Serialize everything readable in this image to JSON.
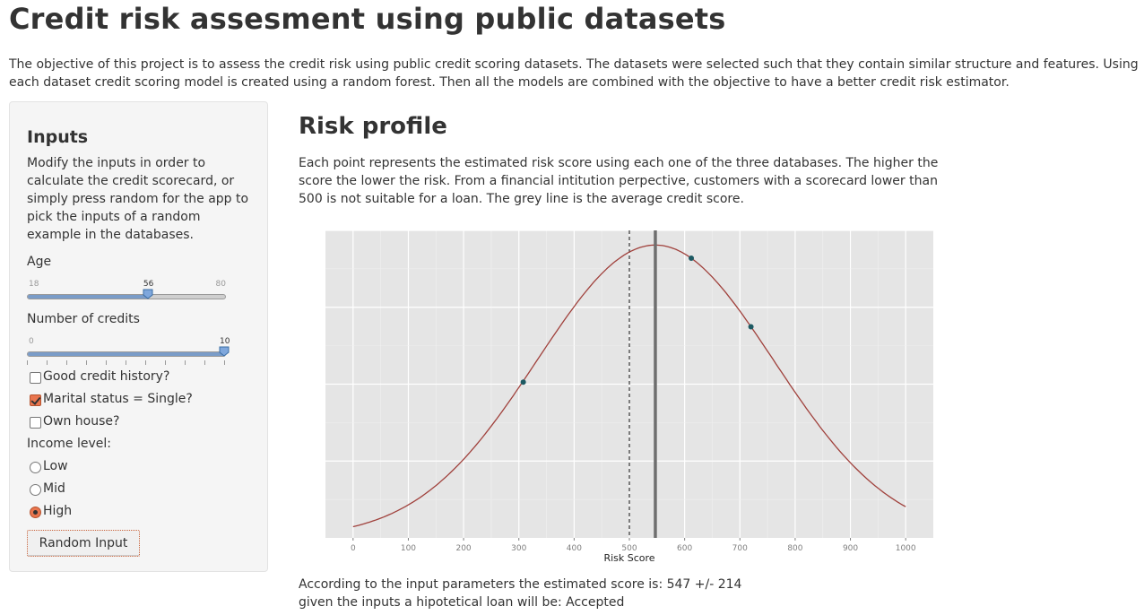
{
  "page": {
    "title": "Credit risk assesment using public datasets",
    "intro": "The objective of this project is to assess the credit risk using public credit scoring datasets. The datasets were selected such that they contain similar structure and features. Using each dataset credit scoring model is created using a random forest. Then all the models are combined with the objective to have a better credit risk estimator."
  },
  "sidebar": {
    "title": "Inputs",
    "help": "Modify the inputs in order to calculate the credit scorecard, or simply press random for the app to pick the inputs of a random example in the databases.",
    "age": {
      "label": "Age",
      "min": "18",
      "max": "80",
      "value": "56",
      "fraction": 0.613
    },
    "credits": {
      "label": "Number of credits",
      "min": "0",
      "value": "10",
      "fraction": 1.0
    },
    "checkboxes": [
      {
        "label": "Good credit history?",
        "checked": false
      },
      {
        "label": "Marital status = Single?",
        "checked": true
      },
      {
        "label": "Own house?",
        "checked": false
      }
    ],
    "income": {
      "label": "Income level:",
      "options": [
        {
          "label": "Low",
          "checked": false
        },
        {
          "label": "Mid",
          "checked": false
        },
        {
          "label": "High",
          "checked": true
        }
      ]
    },
    "random_button": "Random Input"
  },
  "main": {
    "title": "Risk profile",
    "description": "Each point represents the estimated risk score using each one of the three databases. The higher the score the lower the risk. From a financial intitution perpective, customers with a scorecard lower than 500 is not suitable for a loan. The grey line is the average credit score.",
    "result_line1": "According to the input parameters the estimated score is: 547 +/- 214",
    "result_line2": "given the inputs a hipotetical loan will be: Accepted"
  },
  "chart_data": {
    "type": "line",
    "xlabel": "Risk Score",
    "xlim": [
      -50,
      1050
    ],
    "x_ticks": [
      0,
      100,
      200,
      300,
      400,
      500,
      600,
      700,
      800,
      900,
      1000
    ],
    "curve": {
      "type": "normal",
      "mean": 547,
      "sd": 214,
      "x_range": [
        0,
        1000
      ],
      "color": "#a0413c"
    },
    "points": [
      {
        "x": 308,
        "y": 0.532
      },
      {
        "x": 612,
        "y": 0.955
      },
      {
        "x": 720,
        "y": 0.721
      }
    ],
    "point_color": "#1d5a63",
    "average_line": {
      "x": 547,
      "color": "#6e6e6e"
    },
    "threshold_line": {
      "x": 500,
      "style": "dashed",
      "color": "#333333"
    },
    "background": "#e5e5e5",
    "grid": true
  }
}
